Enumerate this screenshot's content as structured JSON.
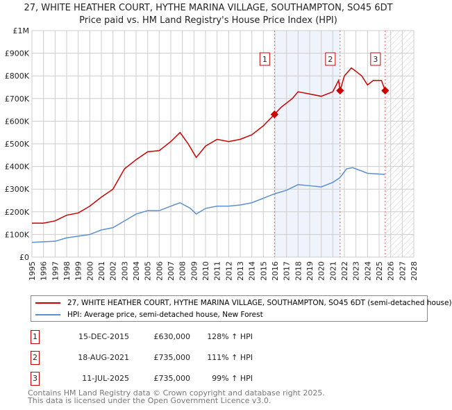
{
  "title": "27, WHITE HEATHER COURT, HYTHE MARINA VILLAGE, SOUTHAMPTON, SO45 6DT",
  "subtitle": "Price paid vs. HM Land Registry's House Price Index (HPI)",
  "chart_data": {
    "type": "line",
    "xlim": [
      1995,
      2028
    ],
    "ylim": [
      0,
      1000000
    ],
    "xticks": [
      "1995",
      "1996",
      "1997",
      "1998",
      "1999",
      "2000",
      "2001",
      "2002",
      "2003",
      "2004",
      "2005",
      "2006",
      "2007",
      "2008",
      "2009",
      "2010",
      "2011",
      "2012",
      "2013",
      "2014",
      "2015",
      "2016",
      "2017",
      "2018",
      "2019",
      "2020",
      "2021",
      "2022",
      "2023",
      "2024",
      "2025",
      "2026",
      "2027",
      "2028"
    ],
    "yticks": [
      {
        "v": 0,
        "l": "£0"
      },
      {
        "v": 100000,
        "l": "£100K"
      },
      {
        "v": 200000,
        "l": "£200K"
      },
      {
        "v": 300000,
        "l": "£300K"
      },
      {
        "v": 400000,
        "l": "£400K"
      },
      {
        "v": 500000,
        "l": "£500K"
      },
      {
        "v": 600000,
        "l": "£600K"
      },
      {
        "v": 700000,
        "l": "£700K"
      },
      {
        "v": 800000,
        "l": "£800K"
      },
      {
        "v": 900000,
        "l": "£900K"
      },
      {
        "v": 1000000,
        "l": "£1M"
      }
    ],
    "series": [
      {
        "name": "27, WHITE HEATHER COURT, HYTHE MARINA VILLAGE, SOUTHAMPTON, SO45 6DT (semi-detached house)",
        "color": "#cc0000",
        "x": [
          1995,
          1996,
          1997,
          1998,
          1999,
          2000,
          2001,
          2002,
          2003,
          2004,
          2005,
          2006,
          2007,
          2007.8,
          2008.5,
          2009.2,
          2010,
          2011,
          2012,
          2013,
          2014,
          2015,
          2015.96,
          2016.5,
          2017.5,
          2018,
          2019,
          2020,
          2021,
          2021.5,
          2021.63,
          2022,
          2022.6,
          2023,
          2023.5,
          2024,
          2024.5,
          2025.2,
          2025.53
        ],
        "y": [
          150000,
          150000,
          160000,
          185000,
          195000,
          225000,
          265000,
          300000,
          390000,
          430000,
          465000,
          470000,
          510000,
          550000,
          500000,
          440000,
          490000,
          520000,
          510000,
          520000,
          540000,
          580000,
          630000,
          660000,
          700000,
          730000,
          720000,
          710000,
          730000,
          780000,
          735000,
          800000,
          835000,
          820000,
          800000,
          760000,
          780000,
          780000,
          735000
        ]
      },
      {
        "name": "HPI: Average price, semi-detached house, New Forest",
        "color": "#5b8fd0",
        "x": [
          1995,
          1997,
          1998,
          2000,
          2001,
          2002,
          2003,
          2004,
          2005,
          2006,
          2007,
          2007.8,
          2008.7,
          2009.2,
          2010,
          2011,
          2012,
          2013,
          2014,
          2015,
          2016,
          2017,
          2018,
          2019,
          2020,
          2021,
          2021.6,
          2022.2,
          2022.7,
          2023.5,
          2024,
          2025.5
        ],
        "y": [
          65000,
          70000,
          85000,
          100000,
          120000,
          130000,
          160000,
          190000,
          205000,
          205000,
          225000,
          240000,
          215000,
          190000,
          215000,
          225000,
          225000,
          230000,
          240000,
          260000,
          280000,
          295000,
          320000,
          315000,
          310000,
          330000,
          350000,
          390000,
          395000,
          380000,
          370000,
          365000
        ]
      }
    ],
    "sales": [
      {
        "label": "1",
        "x": 2015.96,
        "y": 630000
      },
      {
        "label": "2",
        "x": 2021.63,
        "y": 735000
      },
      {
        "label": "3",
        "x": 2025.53,
        "y": 735000
      }
    ]
  },
  "legend": {
    "red": "27, WHITE HEATHER COURT, HYTHE MARINA VILLAGE, SOUTHAMPTON, SO45 6DT (semi-detached house)",
    "blue": "HPI: Average price, semi-detached house, New Forest"
  },
  "transactions": [
    {
      "n": "1",
      "date": "15-DEC-2015",
      "price": "£630,000",
      "hpi": "128% ↑ HPI"
    },
    {
      "n": "2",
      "date": "18-AUG-2021",
      "price": "£735,000",
      "hpi": "111% ↑ HPI"
    },
    {
      "n": "3",
      "date": "11-JUL-2025",
      "price": "£735,000",
      "hpi": "99% ↑ HPI"
    }
  ],
  "footer": {
    "line1": "Contains HM Land Registry data © Crown copyright and database right 2025.",
    "line2": "This data is licensed under the Open Government Licence v3.0."
  }
}
